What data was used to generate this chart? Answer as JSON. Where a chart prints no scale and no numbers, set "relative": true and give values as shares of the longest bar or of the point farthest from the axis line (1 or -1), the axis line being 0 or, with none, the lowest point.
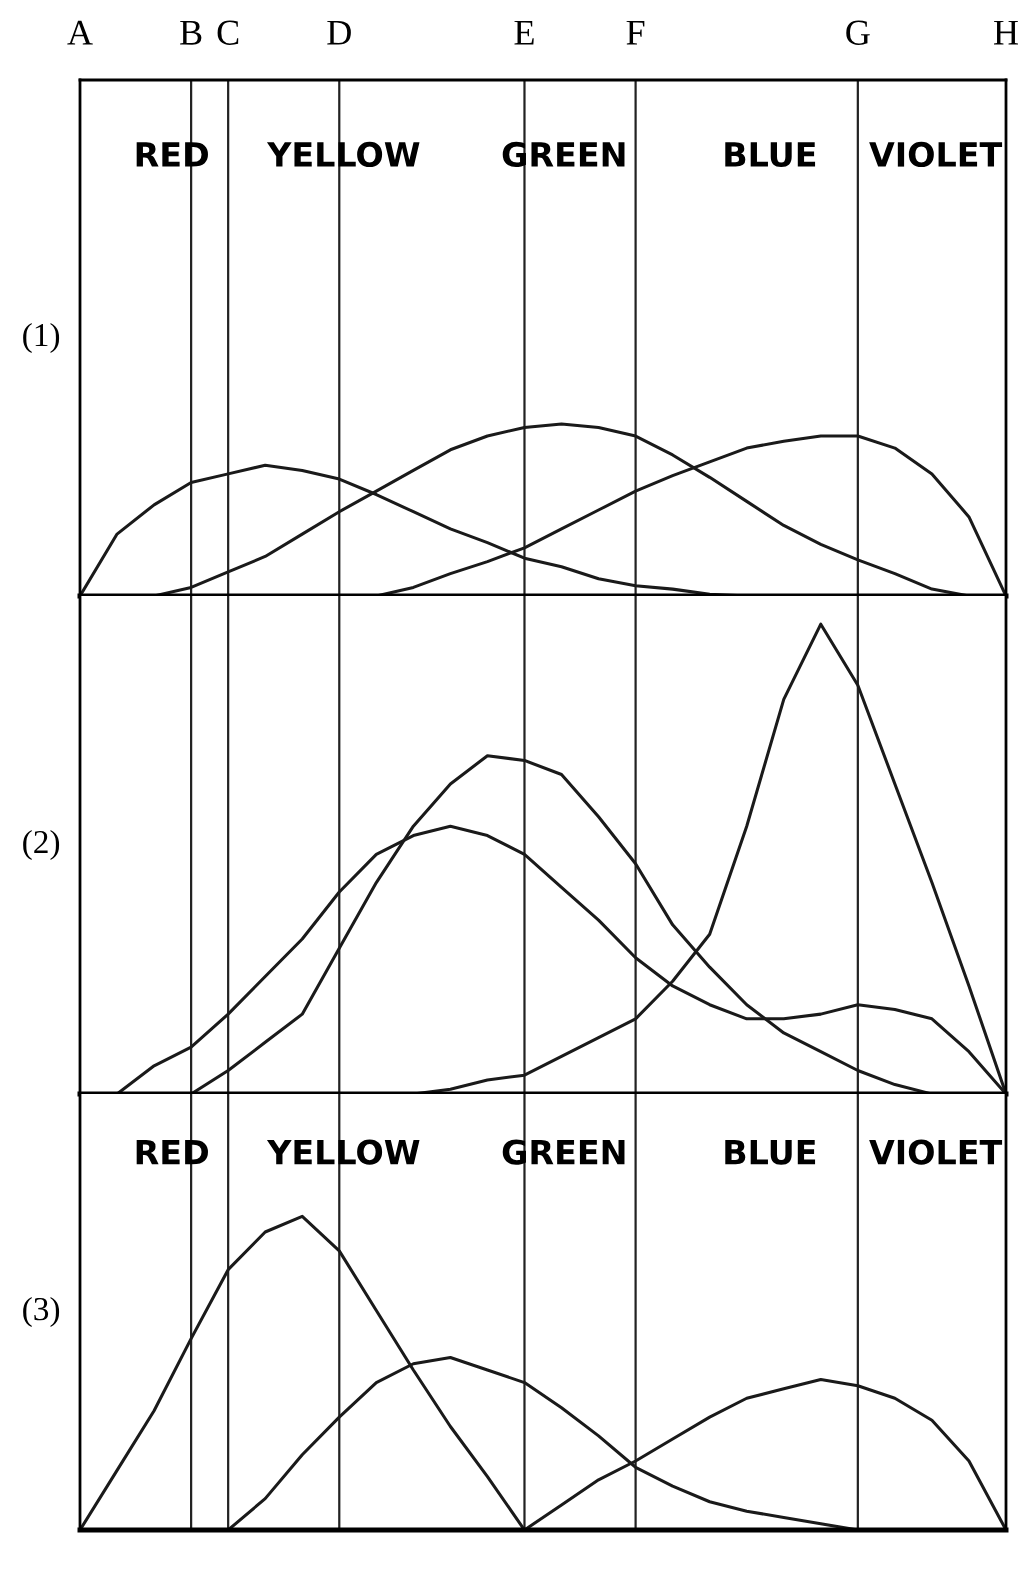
{
  "chart_data": [
    {
      "type": "line",
      "ylabel": "(1)",
      "relative": true,
      "tick_labels": "x",
      "legend": false,
      "marker": "none",
      "line_style": "solid",
      "categories": [
        "A",
        null,
        null,
        "B",
        "C",
        null,
        null,
        "D",
        null,
        null,
        null,
        null,
        "E",
        null,
        null,
        "F",
        null,
        null,
        null,
        null,
        null,
        "G",
        null,
        null,
        null,
        "H"
      ],
      "ref_lines": [
        {
          "axis": "x",
          "value": "B"
        },
        {
          "axis": "x",
          "value": "C"
        },
        {
          "axis": "x",
          "value": "D"
        },
        {
          "axis": "x",
          "value": "E"
        },
        {
          "axis": "x",
          "value": "F"
        },
        {
          "axis": "x",
          "value": "G"
        }
      ],
      "annotations": [
        "RED",
        "YELLOW",
        "GREEN",
        "BLUE",
        "VIOLET"
      ],
      "series": [
        {
          "color": "#1a1a1a",
          "values": [
            0,
            0.36,
            0.53,
            0.66,
            0.71,
            0.76,
            0.73,
            0.68,
            0.59,
            0.49,
            0.39,
            0.31,
            0.22,
            0.17,
            0.1,
            0.06,
            0.04,
            0.01,
            0,
            null,
            null,
            null,
            null,
            null,
            null,
            null
          ]
        },
        {
          "color": "#1a1a1a",
          "values": [
            null,
            null,
            0,
            0.05,
            0.14,
            0.23,
            0.36,
            0.49,
            0.61,
            0.73,
            0.85,
            0.93,
            0.98,
            1,
            0.98,
            0.93,
            0.82,
            0.69,
            0.55,
            0.41,
            0.3,
            0.21,
            0.13,
            0.04,
            0,
            null
          ]
        },
        {
          "color": "#1a1a1a",
          "values": [
            null,
            null,
            null,
            null,
            null,
            null,
            null,
            null,
            0,
            0.05,
            0.13,
            0.2,
            0.28,
            0.39,
            0.5,
            0.61,
            0.7,
            0.78,
            0.86,
            0.9,
            0.93,
            0.93,
            0.86,
            0.71,
            0.46,
            0
          ]
        }
      ]
    },
    {
      "type": "line",
      "ylabel": "(2)",
      "relative": true,
      "tick_labels": false,
      "legend": false,
      "marker": "none",
      "line_style": "solid",
      "categories": [
        "A",
        null,
        null,
        "B",
        "C",
        null,
        null,
        "D",
        null,
        null,
        null,
        null,
        "E",
        null,
        null,
        "F",
        null,
        null,
        null,
        null,
        null,
        "G",
        null,
        null,
        null,
        "H"
      ],
      "ref_lines": [
        {
          "axis": "x",
          "value": "B"
        },
        {
          "axis": "x",
          "value": "C"
        },
        {
          "axis": "x",
          "value": "D"
        },
        {
          "axis": "x",
          "value": "E"
        },
        {
          "axis": "x",
          "value": "F"
        },
        {
          "axis": "x",
          "value": "G"
        }
      ],
      "series": [
        {
          "color": "#1a1a1a",
          "values": [
            null,
            0,
            0.06,
            0.1,
            0.17,
            0.25,
            0.33,
            0.43,
            0.51,
            0.55,
            0.57,
            0.55,
            0.51,
            0.44,
            0.37,
            0.29,
            0.23,
            0.19,
            0.16,
            0.16,
            0.17,
            0.19,
            0.18,
            0.16,
            0.09,
            0
          ]
        },
        {
          "color": "#1a1a1a",
          "values": [
            null,
            null,
            null,
            0,
            0.05,
            0.11,
            0.17,
            0.31,
            0.45,
            0.57,
            0.66,
            0.72,
            0.71,
            0.68,
            0.59,
            0.49,
            0.36,
            0.27,
            0.19,
            0.13,
            0.09,
            0.05,
            0.02,
            0,
            null,
            null
          ]
        },
        {
          "color": "#1a1a1a",
          "values": [
            null,
            null,
            null,
            null,
            null,
            null,
            null,
            null,
            null,
            0,
            0.01,
            0.03,
            0.04,
            0.08,
            0.12,
            0.16,
            0.24,
            0.34,
            0.57,
            0.84,
            1,
            0.87,
            0.66,
            0.45,
            0.23,
            0
          ]
        }
      ]
    },
    {
      "type": "line",
      "ylabel": "(3)",
      "relative": true,
      "tick_labels": false,
      "legend": false,
      "marker": "none",
      "line_style": "solid",
      "categories": [
        "A",
        null,
        null,
        "B",
        "C",
        null,
        null,
        "D",
        null,
        null,
        null,
        null,
        "E",
        null,
        null,
        "F",
        null,
        null,
        null,
        null,
        null,
        "G",
        null,
        null,
        null,
        "H"
      ],
      "ref_lines": [
        {
          "axis": "x",
          "value": "B"
        },
        {
          "axis": "x",
          "value": "C"
        },
        {
          "axis": "x",
          "value": "D"
        },
        {
          "axis": "x",
          "value": "E"
        },
        {
          "axis": "x",
          "value": "F"
        },
        {
          "axis": "x",
          "value": "G"
        }
      ],
      "annotations": [
        "RED",
        "YELLOW",
        "GREEN",
        "BLUE",
        "VIOLET"
      ],
      "series": [
        {
          "color": "#1a1a1a",
          "values": [
            0,
            0.19,
            0.38,
            0.61,
            0.83,
            0.95,
            1,
            0.89,
            0.7,
            0.51,
            0.33,
            0.17,
            0,
            null,
            null,
            null,
            null,
            null,
            null,
            null,
            null,
            null,
            null,
            null,
            null,
            null
          ]
        },
        {
          "color": "#1a1a1a",
          "values": [
            null,
            null,
            null,
            null,
            0,
            0.1,
            0.24,
            0.36,
            0.47,
            0.53,
            0.55,
            0.51,
            0.47,
            0.39,
            0.3,
            0.2,
            0.14,
            0.09,
            0.06,
            0.04,
            0.02,
            0,
            null,
            null,
            null,
            null
          ]
        },
        {
          "color": "#1a1a1a",
          "values": [
            null,
            null,
            null,
            null,
            null,
            null,
            null,
            null,
            null,
            null,
            null,
            null,
            0,
            0.08,
            0.16,
            0.22,
            0.29,
            0.36,
            0.42,
            0.45,
            0.48,
            0.46,
            0.42,
            0.35,
            0.22,
            0
          ]
        }
      ]
    }
  ]
}
